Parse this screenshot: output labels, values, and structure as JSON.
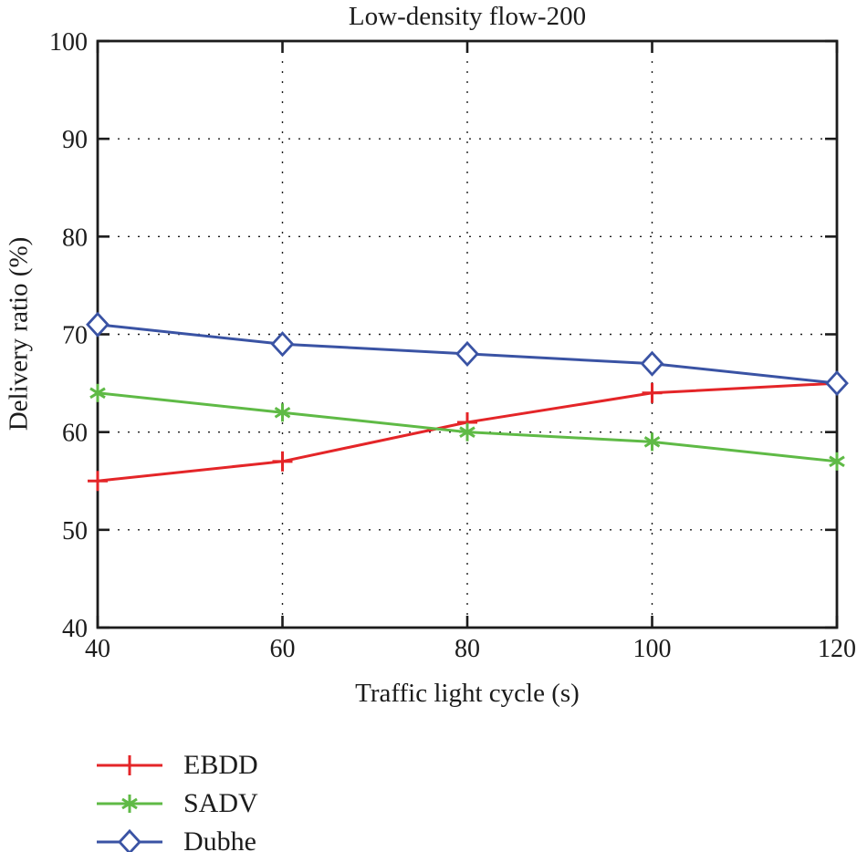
{
  "chart_data": {
    "type": "line",
    "title": "Low-density flow-200",
    "xlabel": "Traffic light cycle (s)",
    "ylabel": "Delivery ratio (%)",
    "x": [
      40,
      60,
      80,
      100,
      120
    ],
    "x_ticks": [
      "40",
      "60",
      "80",
      "100",
      "120"
    ],
    "y_ticks": [
      "40",
      "50",
      "60",
      "70",
      "80",
      "90",
      "100"
    ],
    "xlim": [
      40,
      120
    ],
    "ylim": [
      40,
      100
    ],
    "grid": "dotted",
    "legend_position": "below-left",
    "series": [
      {
        "name": "EBDD",
        "color": "#e42528",
        "marker": "plus",
        "values": [
          55,
          57,
          61,
          64,
          65
        ]
      },
      {
        "name": "SADV",
        "color": "#5fba46",
        "marker": "asterisk",
        "values": [
          64,
          62,
          60,
          59,
          57
        ]
      },
      {
        "name": "Dubhe",
        "color": "#3a53a4",
        "marker": "diamond-open",
        "values": [
          71,
          69,
          68,
          67,
          65
        ]
      }
    ]
  },
  "colors": {
    "axis": "#1c1c1c",
    "background": "#ffffff"
  }
}
